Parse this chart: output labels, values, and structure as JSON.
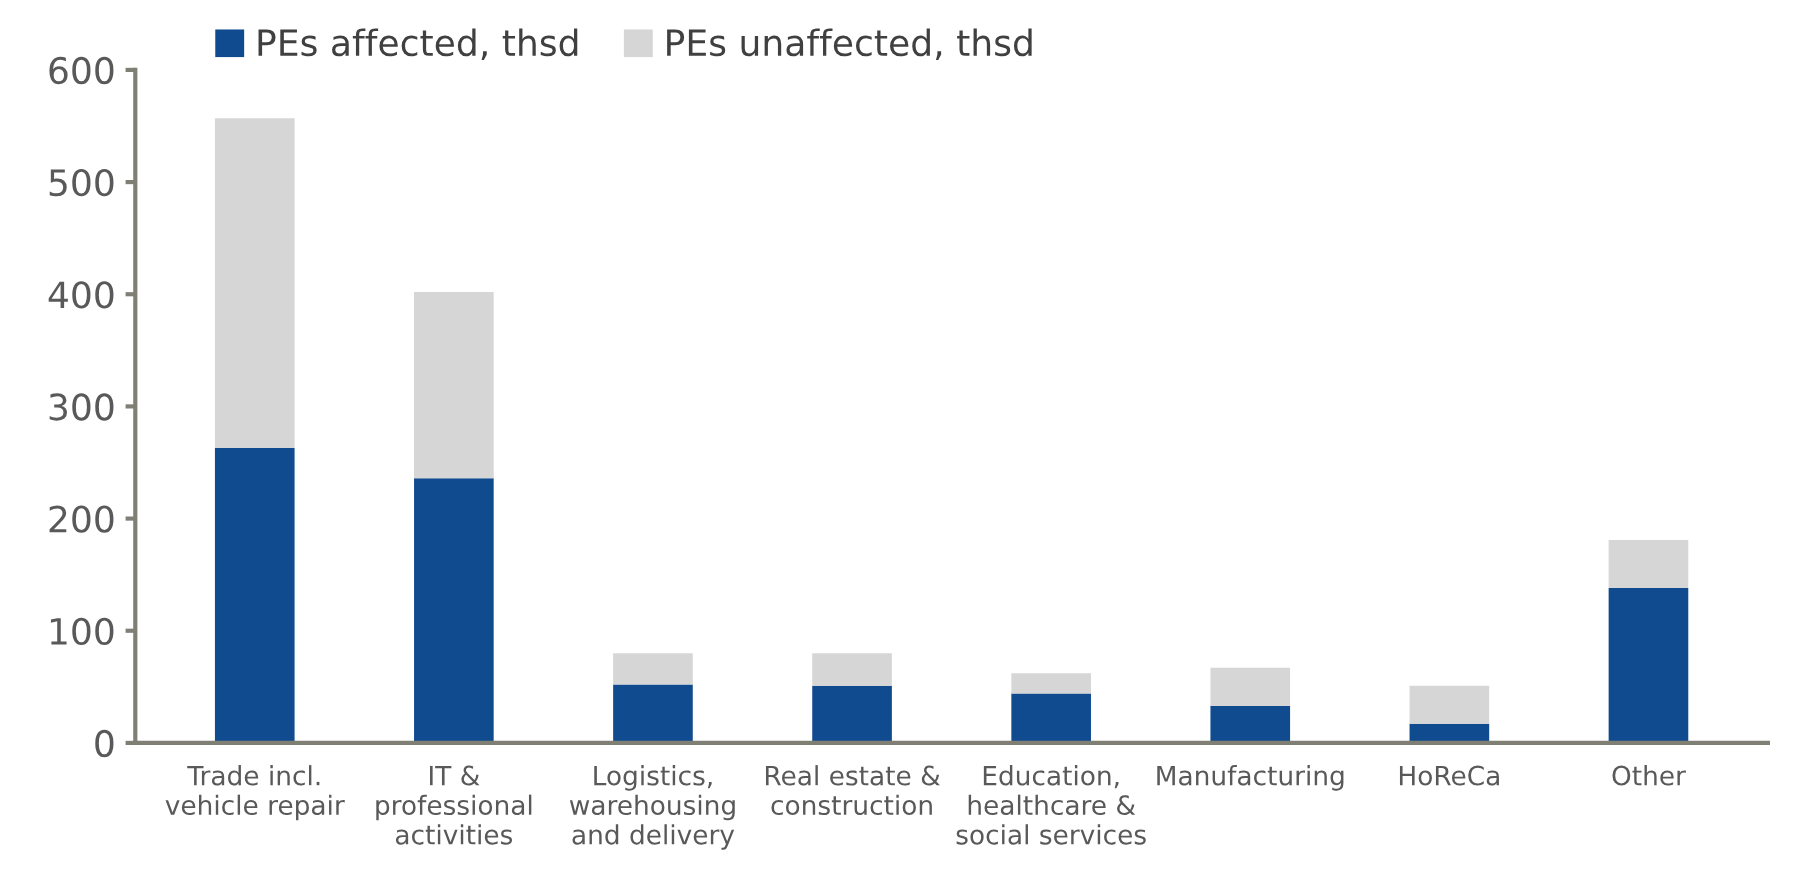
{
  "chart_data": {
    "type": "bar",
    "stacked": true,
    "categories": [
      "Trade incl.\nvehicle repair",
      "IT &\nprofessional\nactivities",
      "Logistics,\nwarehousing\nand delivery",
      "Real estate &\nconstruction",
      "Education,\nhealthcare &\nsocial services",
      "Manufacturing",
      "HoReCa",
      "Other"
    ],
    "series": [
      {
        "name": "PEs affected, thsd",
        "color": "#114b8f",
        "values": [
          263,
          236,
          52,
          51,
          44,
          33,
          17,
          138
        ]
      },
      {
        "name": "PEs unaffected, thsd",
        "color": "#d6d6d6",
        "values": [
          294,
          166,
          28,
          29,
          18,
          34,
          34,
          43
        ]
      }
    ],
    "ylim": [
      0,
      600
    ],
    "yticks": [
      0,
      100,
      200,
      300,
      400,
      500,
      600
    ],
    "grid": false,
    "legend": "top"
  }
}
